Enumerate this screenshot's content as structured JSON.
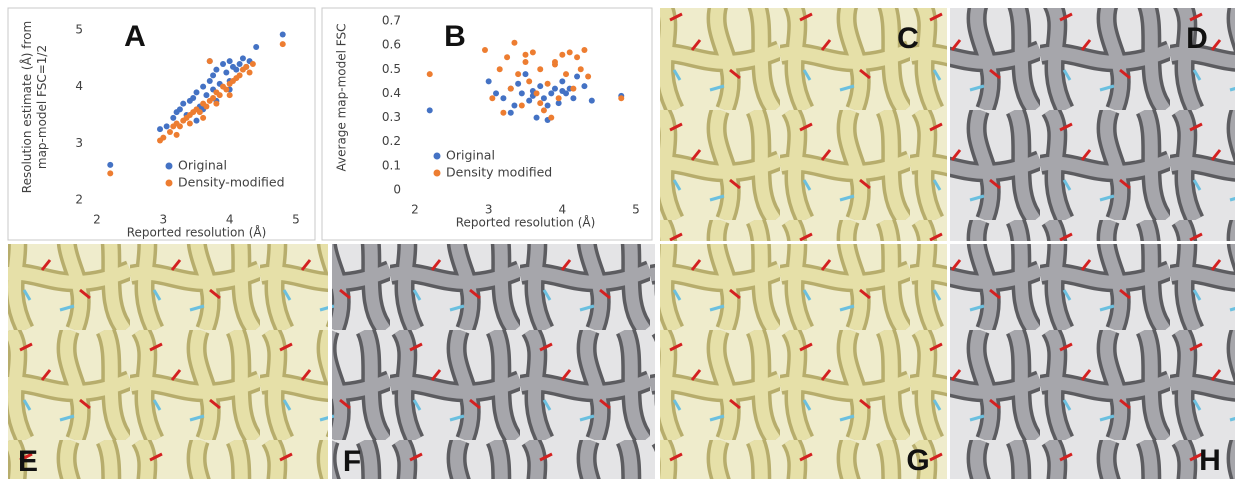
{
  "chart_data": [
    {
      "type": "scatter",
      "title": "A",
      "xlabel": "Reported resolution (Å)",
      "ylabel": [
        "Resolution estimate (Å) from",
        "map-model FSC=1/2"
      ],
      "xlim": [
        2,
        5
      ],
      "xticks": [
        2,
        3,
        4,
        5
      ],
      "ylim": [
        2,
        5
      ],
      "yticks": [
        2,
        3,
        4,
        5
      ],
      "legend": "lower right",
      "series": [
        {
          "name": "Original",
          "color": "#4472c4",
          "x": [
            2.95,
            3.05,
            3.15,
            3.2,
            3.25,
            3.3,
            3.35,
            3.4,
            3.45,
            3.5,
            3.55,
            3.6,
            3.65,
            3.7,
            3.7,
            3.75,
            3.75,
            3.8,
            3.85,
            3.9,
            3.95,
            4.0,
            4.0,
            4.05,
            4.1,
            4.15,
            4.2,
            4.25,
            4.3,
            4.4,
            3.5,
            3.6,
            3.8,
            4.0,
            2.2,
            4.8
          ],
          "values": [
            3.25,
            3.3,
            3.45,
            3.55,
            3.6,
            3.7,
            3.5,
            3.75,
            3.8,
            3.9,
            3.65,
            4.0,
            3.85,
            4.45,
            4.1,
            4.2,
            3.95,
            4.3,
            4.05,
            4.4,
            4.25,
            4.1,
            4.45,
            4.35,
            4.3,
            4.4,
            4.5,
            4.35,
            4.45,
            4.7,
            3.4,
            3.6,
            3.75,
            3.95,
            2.62,
            4.92
          ]
        },
        {
          "name": "Density-modified",
          "color": "#ed7d31",
          "x": [
            2.95,
            3.0,
            3.1,
            3.15,
            3.2,
            3.25,
            3.3,
            3.35,
            3.4,
            3.45,
            3.5,
            3.55,
            3.6,
            3.65,
            3.7,
            3.75,
            3.8,
            3.85,
            3.9,
            3.95,
            4.0,
            4.05,
            4.1,
            4.15,
            4.2,
            4.25,
            4.3,
            4.35,
            3.4,
            3.6,
            3.8,
            4.0,
            3.7,
            3.2,
            2.2,
            4.8
          ],
          "values": [
            3.05,
            3.1,
            3.2,
            3.3,
            3.35,
            3.3,
            3.4,
            3.45,
            3.5,
            3.55,
            3.6,
            3.55,
            3.7,
            3.65,
            3.75,
            3.8,
            3.9,
            3.85,
            4.0,
            3.95,
            4.05,
            4.1,
            4.15,
            4.2,
            4.3,
            4.35,
            4.25,
            4.4,
            3.35,
            3.45,
            3.7,
            3.85,
            4.45,
            3.15,
            2.47,
            4.75
          ]
        }
      ]
    },
    {
      "type": "scatter",
      "title": "B",
      "xlabel": "Reported resolution (Å)",
      "ylabel": [
        "Average map-model FSC"
      ],
      "xlim": [
        2,
        5
      ],
      "xticks": [
        2,
        3,
        4,
        5
      ],
      "ylim": [
        0,
        0.7
      ],
      "yticks": [
        0,
        0.1,
        0.2,
        0.3,
        0.4,
        0.5,
        0.6,
        0.7
      ],
      "legend": "lower left",
      "series": [
        {
          "name": "Original",
          "color": "#4472c4",
          "x": [
            3.0,
            3.1,
            3.2,
            3.3,
            3.35,
            3.4,
            3.45,
            3.5,
            3.55,
            3.6,
            3.65,
            3.7,
            3.75,
            3.8,
            3.85,
            3.9,
            3.95,
            4.0,
            4.05,
            4.1,
            4.15,
            4.2,
            4.3,
            4.4,
            3.3,
            3.6,
            3.8,
            4.0,
            2.2,
            4.8
          ],
          "values": [
            0.45,
            0.4,
            0.38,
            0.42,
            0.35,
            0.44,
            0.4,
            0.48,
            0.37,
            0.41,
            0.3,
            0.43,
            0.38,
            0.35,
            0.4,
            0.42,
            0.36,
            0.45,
            0.4,
            0.42,
            0.38,
            0.47,
            0.43,
            0.37,
            0.32,
            0.39,
            0.29,
            0.41,
            0.33,
            0.39
          ]
        },
        {
          "name": "Density modified",
          "color": "#ed7d31",
          "x": [
            2.95,
            3.05,
            3.15,
            3.25,
            3.3,
            3.35,
            3.4,
            3.45,
            3.5,
            3.55,
            3.6,
            3.65,
            3.7,
            3.75,
            3.8,
            3.85,
            3.9,
            3.95,
            4.0,
            4.05,
            4.1,
            4.15,
            4.2,
            4.25,
            4.3,
            4.35,
            3.2,
            3.5,
            3.7,
            3.9,
            2.2,
            4.8
          ],
          "values": [
            0.58,
            0.38,
            0.5,
            0.55,
            0.42,
            0.61,
            0.48,
            0.35,
            0.53,
            0.45,
            0.57,
            0.4,
            0.5,
            0.33,
            0.44,
            0.3,
            0.52,
            0.38,
            0.56,
            0.48,
            0.57,
            0.42,
            0.55,
            0.5,
            0.58,
            0.47,
            0.32,
            0.56,
            0.36,
            0.53,
            0.48,
            0.38
          ]
        }
      ]
    }
  ],
  "image_panels": [
    {
      "label": "C"
    },
    {
      "label": "D"
    },
    {
      "label": "E"
    },
    {
      "label": "F"
    },
    {
      "label": "G"
    },
    {
      "label": "H"
    }
  ]
}
